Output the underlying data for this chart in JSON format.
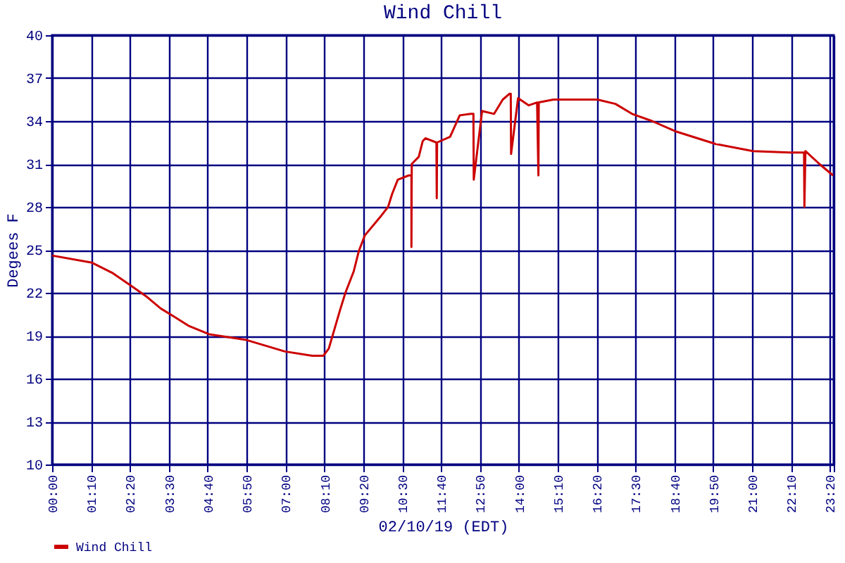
{
  "chart_data": {
    "type": "line",
    "title": "Wind Chill",
    "xlabel": "02/10/19 (EDT)",
    "ylabel": "Degees F",
    "x": [
      0,
      1.2,
      1.8,
      2.36,
      2.85,
      3.26,
      3.68,
      4.09,
      4.71,
      5.83,
      6.98,
      7.8,
      8.14,
      8.3,
      8.64,
      8.8,
      9.05,
      9.2,
      9.38,
      9.88,
      10.08,
      10.2,
      10.37,
      10.7,
      10.78,
      10.78,
      10.79,
      11.0,
      11.12,
      11.2,
      11.53,
      11.54,
      11.55,
      11.94,
      12.23,
      12.56,
      12.64,
      12.65,
      12.9,
      13.26,
      13.52,
      13.72,
      13.76,
      13.77,
      13.98,
      14.3,
      14.55,
      14.59,
      14.6,
      15.04,
      16.36,
      16.9,
      17.4,
      18.0,
      18.68,
      19.9,
      21.03,
      22.15,
      22.56,
      22.57,
      22.6,
      23.02,
      23.43
    ],
    "series": [
      {
        "name": "Wind Chill",
        "color": "#cc0000",
        "values": [
          24.6,
          24.1,
          23.4,
          22.5,
          21.7,
          20.9,
          20.3,
          19.7,
          19.1,
          18.7,
          17.9,
          17.6,
          17.6,
          18.1,
          20.8,
          22.0,
          23.5,
          24.9,
          26.0,
          27.4,
          28.0,
          28.9,
          29.9,
          30.2,
          30.2,
          25.2,
          31.0,
          31.5,
          32.6,
          32.8,
          32.5,
          28.6,
          32.5,
          32.9,
          34.4,
          34.5,
          34.5,
          29.9,
          34.7,
          34.5,
          35.5,
          35.9,
          35.9,
          31.7,
          35.6,
          35.1,
          35.3,
          30.2,
          35.3,
          35.5,
          35.5,
          35.2,
          34.5,
          34.0,
          33.3,
          32.4,
          31.9,
          31.8,
          31.8,
          28.0,
          31.9,
          31.0,
          30.2
        ]
      }
    ],
    "xlim": [
      0,
      23.45
    ],
    "xticks": [
      {
        "value": 0,
        "label": "00:00"
      },
      {
        "value": 1.1667,
        "label": "01:10"
      },
      {
        "value": 2.3333,
        "label": "02:20"
      },
      {
        "value": 3.5,
        "label": "03:30"
      },
      {
        "value": 4.6667,
        "label": "04:40"
      },
      {
        "value": 5.8333,
        "label": "05:50"
      },
      {
        "value": 7,
        "label": "07:00"
      },
      {
        "value": 8.1667,
        "label": "08:10"
      },
      {
        "value": 9.3333,
        "label": "09:20"
      },
      {
        "value": 10.5,
        "label": "10:30"
      },
      {
        "value": 11.6667,
        "label": "11:40"
      },
      {
        "value": 12.8333,
        "label": "12:50"
      },
      {
        "value": 14,
        "label": "14:00"
      },
      {
        "value": 15.1667,
        "label": "15:10"
      },
      {
        "value": 16.3333,
        "label": "16:20"
      },
      {
        "value": 17.5,
        "label": "17:30"
      },
      {
        "value": 18.6667,
        "label": "18:40"
      },
      {
        "value": 19.8333,
        "label": "19:50"
      },
      {
        "value": 21,
        "label": "21:00"
      },
      {
        "value": 22.1667,
        "label": "22:10"
      },
      {
        "value": 23.3333,
        "label": "23:20"
      },
      {
        "value": 23.45,
        "label": null
      }
    ],
    "ylim": [
      10,
      40
    ],
    "yticks": [
      10,
      13,
      16,
      19,
      22,
      25,
      28,
      31,
      34,
      37,
      40
    ],
    "grid": true,
    "legend": "bottom"
  }
}
